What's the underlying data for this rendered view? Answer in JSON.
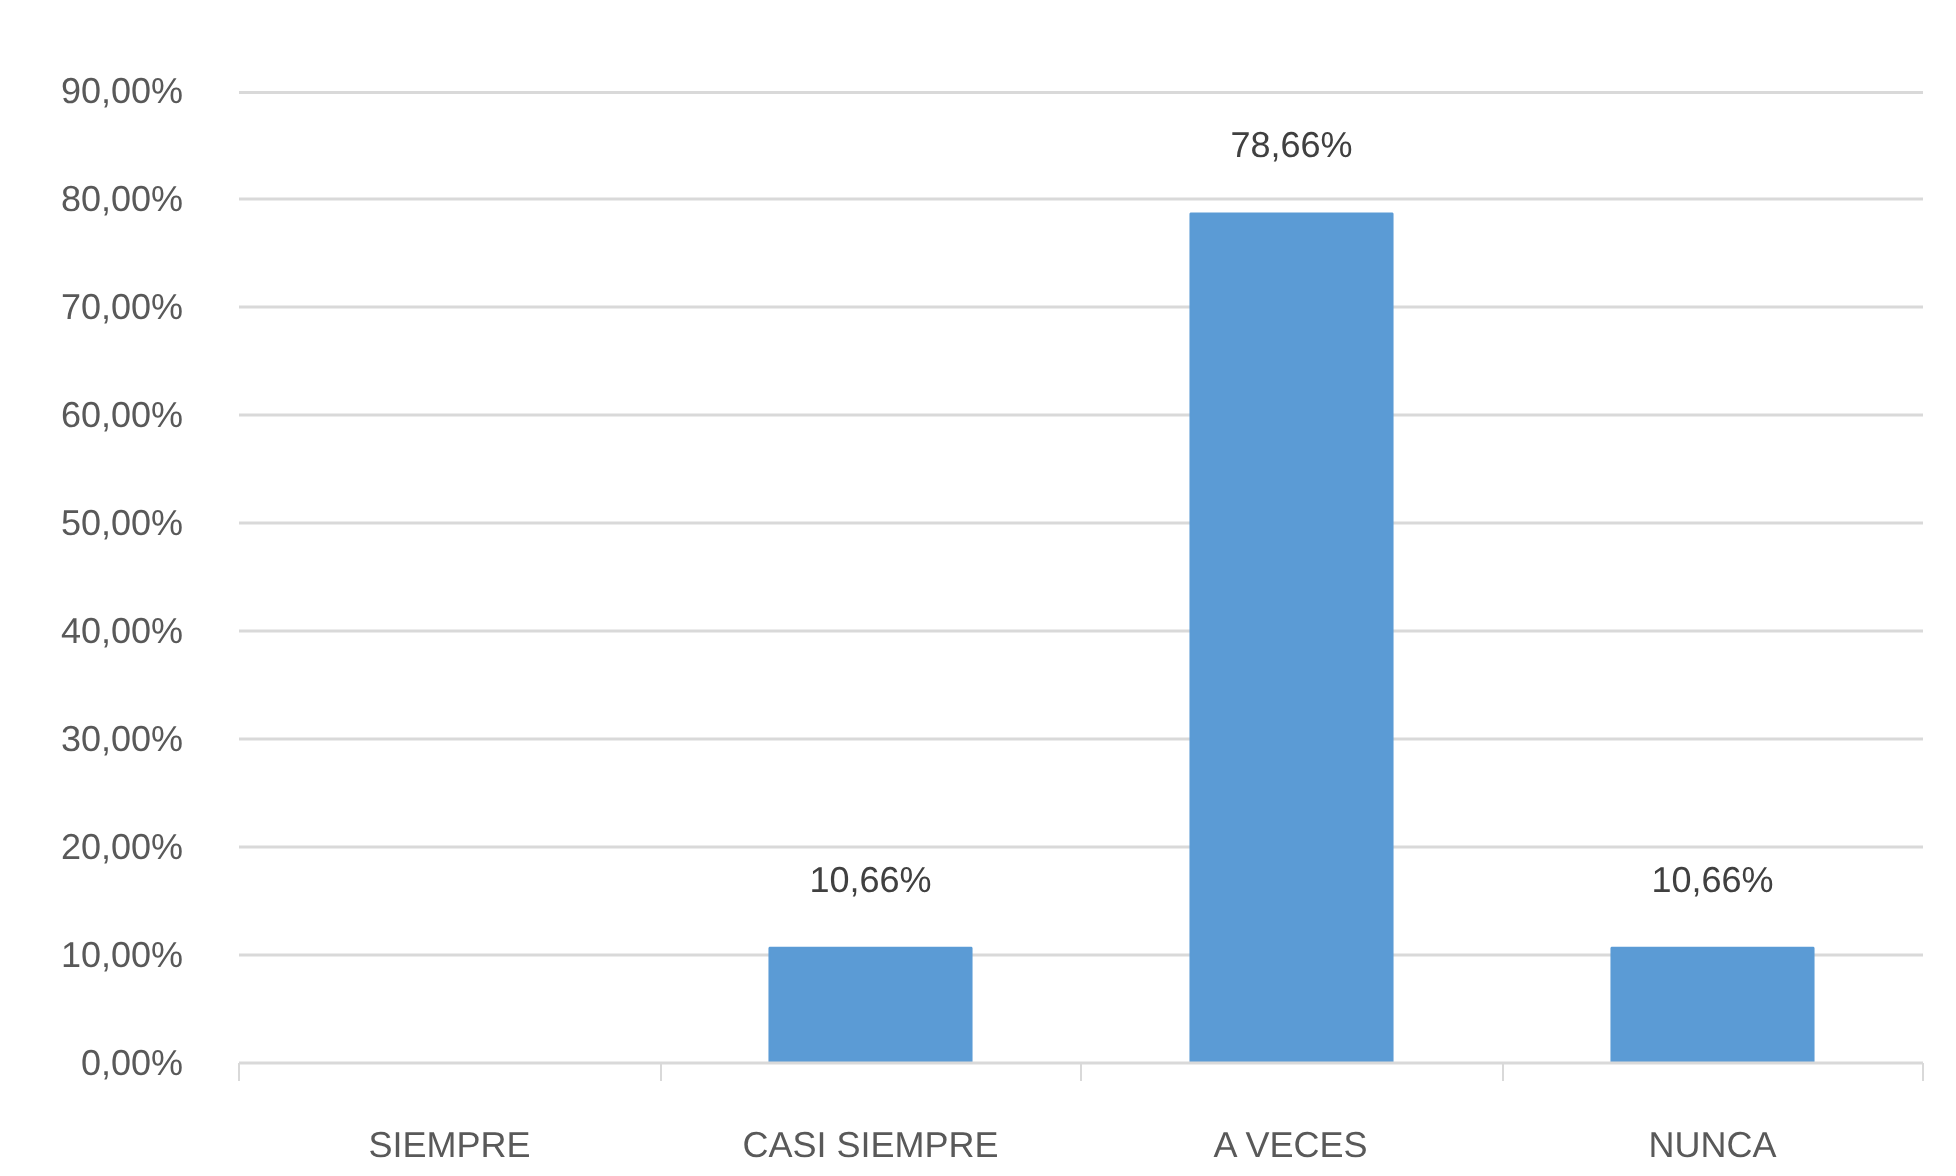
{
  "chart_data": {
    "type": "bar",
    "categories": [
      "SIEMPRE",
      "CASI SIEMPRE",
      "A VECES",
      "NUNCA"
    ],
    "values": [
      null,
      10.66,
      78.66,
      10.66
    ],
    "color": "#5b9bd5",
    "value_labels": [
      null,
      "10,66%",
      "78,66%",
      "10,66%"
    ],
    "ylim": [
      0,
      90
    ],
    "yticks": [
      {
        "value": 0,
        "label": "0,00%"
      },
      {
        "value": 10,
        "label": "10,00%"
      },
      {
        "value": 20,
        "label": "20,00%"
      },
      {
        "value": 30,
        "label": "30,00%"
      },
      {
        "value": 40,
        "label": "40,00%"
      },
      {
        "value": 50,
        "label": "50,00%"
      },
      {
        "value": 60,
        "label": "60,00%"
      },
      {
        "value": 70,
        "label": "70,00%"
      },
      {
        "value": 80,
        "label": "80,00%"
      },
      {
        "value": 90,
        "label": "90,00%"
      }
    ],
    "grid": "y"
  }
}
